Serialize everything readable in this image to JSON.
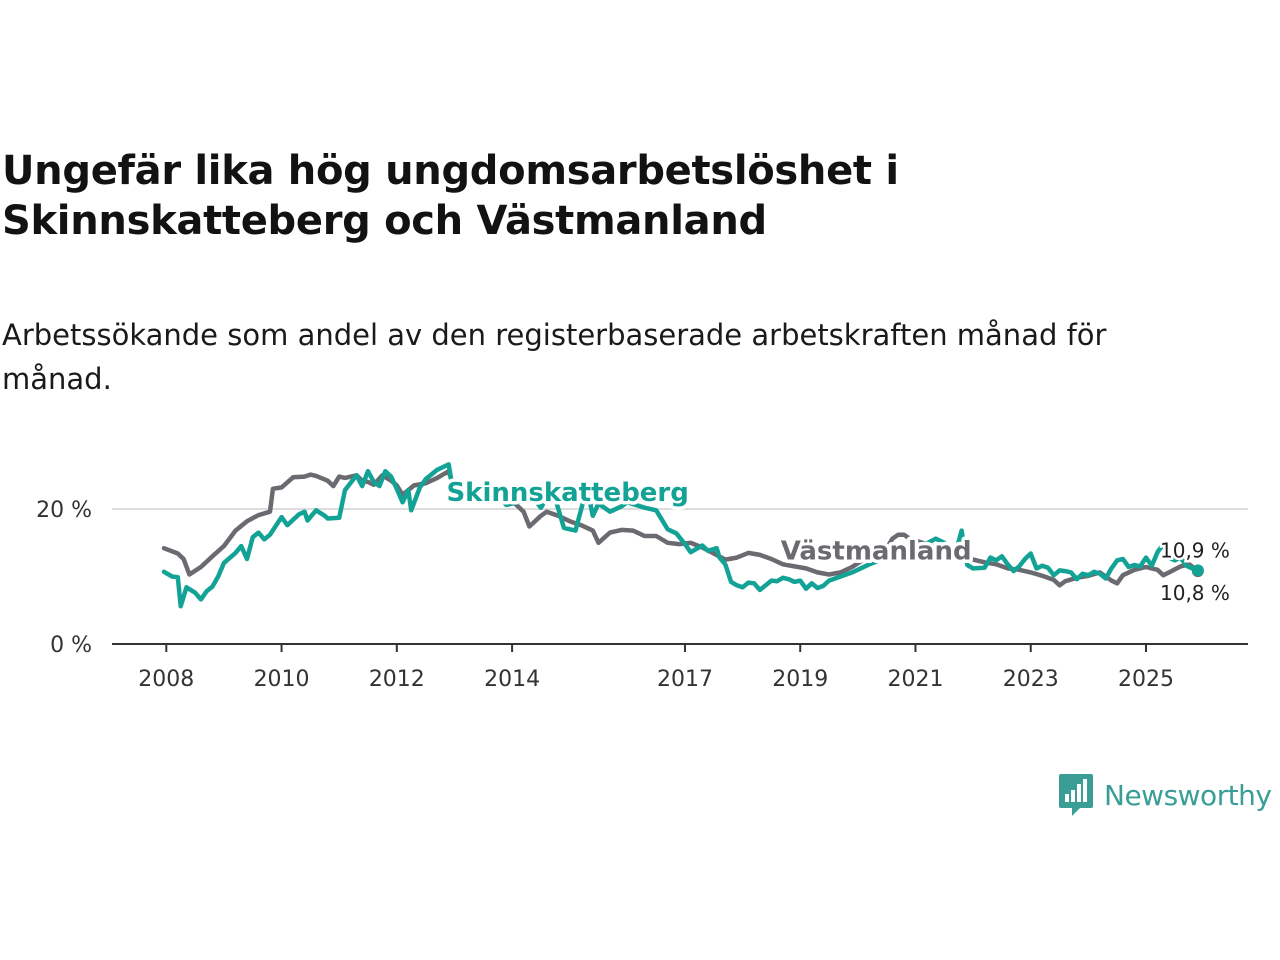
{
  "header": {
    "title": "Ungefär lika hög ungdomsarbetslöshet i Skinnskatteberg och Västmanland",
    "subtitle": "Arbetssökande som andel av den registerbaserade arbetskraften månad för månad."
  },
  "brand": {
    "name": "Newsworthy"
  },
  "colors": {
    "skinnskatteberg": "#13a396",
    "vastmanland": "#6b6a70",
    "grid": "#dddddd",
    "axis": "#333333"
  },
  "chart_data": {
    "type": "line",
    "title": "Ungefär lika hög ungdomsarbetslöshet i Skinnskatteberg och Västmanland",
    "xlabel": "",
    "ylabel": "",
    "xlim": [
      2007.5,
      2026.5
    ],
    "ylim": [
      0,
      27
    ],
    "y_ticks": [
      0,
      20
    ],
    "y_tick_labels": [
      "0 %",
      "20 %"
    ],
    "x_ticks": [
      2008,
      2010,
      2012,
      2014,
      2017,
      2019,
      2021,
      2023,
      2025
    ],
    "x_tick_labels": [
      "2008",
      "2010",
      "2012",
      "2014",
      "2017",
      "2019",
      "2021",
      "2023",
      "2025"
    ],
    "grid": true,
    "series": [
      {
        "name": "Västmanland",
        "end_label": "10,8 %",
        "points": [
          [
            2007.96,
            14.2
          ],
          [
            2008.2,
            13.4
          ],
          [
            2008.3,
            12.6
          ],
          [
            2008.4,
            10.3
          ],
          [
            2008.6,
            11.4
          ],
          [
            2008.8,
            13.0
          ],
          [
            2009.0,
            14.5
          ],
          [
            2009.2,
            16.8
          ],
          [
            2009.4,
            18.2
          ],
          [
            2009.6,
            19.1
          ],
          [
            2009.8,
            19.6
          ],
          [
            2009.85,
            23.0
          ],
          [
            2010.0,
            23.2
          ],
          [
            2010.2,
            24.7
          ],
          [
            2010.4,
            24.8
          ],
          [
            2010.5,
            25.1
          ],
          [
            2010.6,
            24.9
          ],
          [
            2010.8,
            24.2
          ],
          [
            2010.9,
            23.4
          ],
          [
            2011.0,
            24.8
          ],
          [
            2011.1,
            24.6
          ],
          [
            2011.3,
            25.0
          ],
          [
            2011.4,
            24.2
          ],
          [
            2011.5,
            24.0
          ],
          [
            2011.6,
            23.6
          ],
          [
            2011.75,
            25.0
          ],
          [
            2011.9,
            24.2
          ],
          [
            2012.0,
            23.5
          ],
          [
            2012.1,
            22.1
          ],
          [
            2012.3,
            23.5
          ],
          [
            2012.5,
            23.8
          ],
          [
            2012.7,
            24.6
          ],
          [
            2012.9,
            25.6
          ],
          [
            2013.0,
            22.9
          ],
          [
            2013.2,
            22.5
          ],
          [
            2013.4,
            21.9
          ],
          [
            2013.6,
            21.8
          ],
          [
            2013.8,
            21.5
          ],
          [
            2014.0,
            21.2
          ],
          [
            2014.2,
            19.6
          ],
          [
            2014.3,
            17.4
          ],
          [
            2014.5,
            19.0
          ],
          [
            2014.6,
            19.6
          ],
          [
            2014.8,
            19.0
          ],
          [
            2015.0,
            18.2
          ],
          [
            2015.2,
            17.6
          ],
          [
            2015.4,
            16.8
          ],
          [
            2015.5,
            15.0
          ],
          [
            2015.7,
            16.5
          ],
          [
            2015.9,
            16.9
          ],
          [
            2016.1,
            16.8
          ],
          [
            2016.3,
            16.0
          ],
          [
            2016.5,
            16.0
          ],
          [
            2016.7,
            15.0
          ],
          [
            2016.9,
            14.8
          ],
          [
            2017.1,
            15.0
          ],
          [
            2017.3,
            14.3
          ],
          [
            2017.5,
            13.4
          ],
          [
            2017.7,
            12.5
          ],
          [
            2017.9,
            12.8
          ],
          [
            2018.1,
            13.5
          ],
          [
            2018.3,
            13.2
          ],
          [
            2018.5,
            12.6
          ],
          [
            2018.7,
            11.8
          ],
          [
            2018.9,
            11.5
          ],
          [
            2019.1,
            11.2
          ],
          [
            2019.3,
            10.6
          ],
          [
            2019.5,
            10.3
          ],
          [
            2019.7,
            10.6
          ],
          [
            2019.9,
            11.4
          ],
          [
            2020.1,
            12.5
          ],
          [
            2020.3,
            13.6
          ],
          [
            2020.5,
            14.2
          ],
          [
            2020.6,
            15.6
          ],
          [
            2020.7,
            16.2
          ],
          [
            2020.8,
            16.2
          ],
          [
            2020.9,
            15.6
          ],
          [
            2021.0,
            15.3
          ],
          [
            2021.2,
            14.8
          ],
          [
            2021.4,
            14.2
          ],
          [
            2021.6,
            13.5
          ],
          [
            2021.8,
            13.3
          ],
          [
            2022.0,
            12.5
          ],
          [
            2022.2,
            12.1
          ],
          [
            2022.4,
            11.8
          ],
          [
            2022.6,
            11.2
          ],
          [
            2022.8,
            11.0
          ],
          [
            2023.0,
            10.6
          ],
          [
            2023.2,
            10.1
          ],
          [
            2023.4,
            9.5
          ],
          [
            2023.5,
            8.7
          ],
          [
            2023.6,
            9.3
          ],
          [
            2023.8,
            9.8
          ],
          [
            2024.0,
            10.1
          ],
          [
            2024.2,
            10.6
          ],
          [
            2024.4,
            9.4
          ],
          [
            2024.5,
            9.0
          ],
          [
            2024.6,
            10.2
          ],
          [
            2024.8,
            11.0
          ],
          [
            2025.0,
            11.4
          ],
          [
            2025.2,
            11.0
          ],
          [
            2025.3,
            10.2
          ],
          [
            2025.4,
            10.6
          ],
          [
            2025.6,
            11.5
          ],
          [
            2025.75,
            11.8
          ],
          [
            2025.9,
            10.8
          ]
        ]
      },
      {
        "name": "Skinnskatteberg",
        "end_label": "10,9 %",
        "points": [
          [
            2007.96,
            10.7
          ],
          [
            2008.1,
            10.0
          ],
          [
            2008.2,
            9.9
          ],
          [
            2008.25,
            5.6
          ],
          [
            2008.35,
            8.4
          ],
          [
            2008.5,
            7.6
          ],
          [
            2008.6,
            6.6
          ],
          [
            2008.7,
            7.8
          ],
          [
            2008.8,
            8.5
          ],
          [
            2008.9,
            10.0
          ],
          [
            2009.0,
            12.0
          ],
          [
            2009.2,
            13.5
          ],
          [
            2009.3,
            14.5
          ],
          [
            2009.4,
            12.6
          ],
          [
            2009.5,
            15.8
          ],
          [
            2009.6,
            16.5
          ],
          [
            2009.7,
            15.5
          ],
          [
            2009.8,
            16.2
          ],
          [
            2009.9,
            17.5
          ],
          [
            2010.0,
            18.8
          ],
          [
            2010.1,
            17.6
          ],
          [
            2010.3,
            19.2
          ],
          [
            2010.4,
            19.6
          ],
          [
            2010.45,
            18.3
          ],
          [
            2010.6,
            19.8
          ],
          [
            2010.75,
            19.0
          ],
          [
            2010.8,
            18.6
          ],
          [
            2011.0,
            18.7
          ],
          [
            2011.1,
            22.8
          ],
          [
            2011.3,
            25.0
          ],
          [
            2011.4,
            23.4
          ],
          [
            2011.5,
            25.6
          ],
          [
            2011.6,
            24.0
          ],
          [
            2011.7,
            23.4
          ],
          [
            2011.8,
            25.6
          ],
          [
            2011.9,
            24.8
          ],
          [
            2012.0,
            23.0
          ],
          [
            2012.1,
            21.0
          ],
          [
            2012.2,
            22.8
          ],
          [
            2012.25,
            19.8
          ],
          [
            2012.4,
            23.2
          ],
          [
            2012.5,
            24.4
          ],
          [
            2012.7,
            25.8
          ],
          [
            2012.9,
            26.6
          ],
          [
            2013.0,
            21.4
          ],
          [
            2013.2,
            21.8
          ],
          [
            2013.5,
            21.2
          ],
          [
            2013.7,
            22.4
          ],
          [
            2013.9,
            20.6
          ],
          [
            2014.1,
            21.0
          ],
          [
            2014.3,
            22.4
          ],
          [
            2014.5,
            20.2
          ],
          [
            2014.7,
            23.0
          ],
          [
            2014.9,
            17.2
          ],
          [
            2015.1,
            16.8
          ],
          [
            2015.3,
            23.2
          ],
          [
            2015.4,
            19.0
          ],
          [
            2015.5,
            20.8
          ],
          [
            2015.7,
            19.6
          ],
          [
            2015.9,
            20.4
          ],
          [
            2016.0,
            21.0
          ],
          [
            2016.3,
            20.2
          ],
          [
            2016.5,
            19.8
          ],
          [
            2016.7,
            17.0
          ],
          [
            2016.85,
            16.4
          ],
          [
            2017.0,
            14.8
          ],
          [
            2017.1,
            13.6
          ],
          [
            2017.3,
            14.6
          ],
          [
            2017.4,
            13.8
          ],
          [
            2017.55,
            14.2
          ],
          [
            2017.6,
            12.8
          ],
          [
            2017.7,
            11.8
          ],
          [
            2017.8,
            9.2
          ],
          [
            2017.9,
            8.7
          ],
          [
            2018.0,
            8.4
          ],
          [
            2018.1,
            9.1
          ],
          [
            2018.2,
            9.0
          ],
          [
            2018.3,
            8.0
          ],
          [
            2018.4,
            8.7
          ],
          [
            2018.5,
            9.4
          ],
          [
            2018.6,
            9.3
          ],
          [
            2018.7,
            9.8
          ],
          [
            2018.8,
            9.6
          ],
          [
            2018.9,
            9.2
          ],
          [
            2019.0,
            9.4
          ],
          [
            2019.1,
            8.2
          ],
          [
            2019.2,
            9.0
          ],
          [
            2019.3,
            8.3
          ],
          [
            2019.4,
            8.6
          ],
          [
            2019.5,
            9.4
          ],
          [
            2019.7,
            10.0
          ],
          [
            2019.9,
            10.6
          ],
          [
            2020.2,
            11.8
          ],
          [
            2020.5,
            12.8
          ],
          [
            2020.8,
            13.4
          ],
          [
            2021.0,
            14.6
          ],
          [
            2021.2,
            14.9
          ],
          [
            2021.35,
            15.6
          ],
          [
            2021.5,
            15.0
          ],
          [
            2021.6,
            14.2
          ],
          [
            2021.7,
            13.6
          ],
          [
            2021.8,
            16.8
          ],
          [
            2021.9,
            11.7
          ],
          [
            2022.0,
            11.2
          ],
          [
            2022.2,
            11.3
          ],
          [
            2022.3,
            12.8
          ],
          [
            2022.4,
            12.4
          ],
          [
            2022.5,
            13.0
          ],
          [
            2022.6,
            11.8
          ],
          [
            2022.7,
            10.8
          ],
          [
            2022.8,
            11.5
          ],
          [
            2022.9,
            12.6
          ],
          [
            2023.0,
            13.4
          ],
          [
            2023.1,
            11.2
          ],
          [
            2023.2,
            11.6
          ],
          [
            2023.3,
            11.3
          ],
          [
            2023.4,
            10.2
          ],
          [
            2023.5,
            10.9
          ],
          [
            2023.6,
            10.8
          ],
          [
            2023.7,
            10.6
          ],
          [
            2023.8,
            9.6
          ],
          [
            2023.9,
            10.4
          ],
          [
            2024.0,
            10.2
          ],
          [
            2024.1,
            10.7
          ],
          [
            2024.2,
            10.4
          ],
          [
            2024.3,
            9.7
          ],
          [
            2024.4,
            11.2
          ],
          [
            2024.5,
            12.4
          ],
          [
            2024.6,
            12.6
          ],
          [
            2024.7,
            11.4
          ],
          [
            2024.8,
            11.7
          ],
          [
            2024.9,
            11.5
          ],
          [
            2025.0,
            12.8
          ],
          [
            2025.1,
            11.6
          ],
          [
            2025.2,
            13.6
          ],
          [
            2025.3,
            14.8
          ],
          [
            2025.4,
            12.8
          ],
          [
            2025.5,
            12.4
          ],
          [
            2025.6,
            12.8
          ],
          [
            2025.7,
            11.6
          ],
          [
            2025.8,
            11.2
          ],
          [
            2025.9,
            10.9
          ]
        ]
      }
    ],
    "annotations": [
      {
        "text": "Skinnskatteberg",
        "x": 2013.0,
        "y": 21.2,
        "series": "Skinnskatteberg"
      },
      {
        "text": "Västmanland",
        "x": 2018.8,
        "y": 12.5,
        "series": "Västmanland"
      }
    ]
  }
}
